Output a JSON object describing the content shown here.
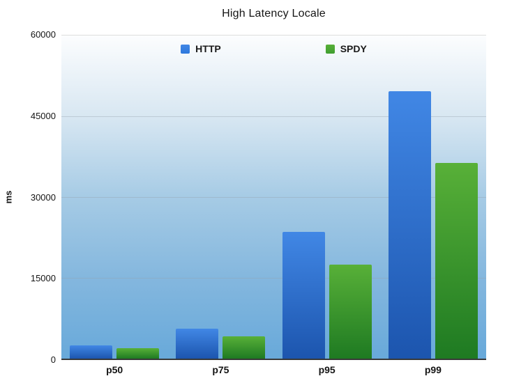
{
  "chart_data": {
    "type": "bar",
    "title": "High Latency Locale",
    "xlabel": "",
    "ylabel": "ms",
    "categories": [
      "p50",
      "p75",
      "p95",
      "p99"
    ],
    "series": [
      {
        "name": "HTTP",
        "values": [
          2400,
          5600,
          23500,
          49600
        ],
        "color_top": "#4187e5",
        "color_bottom": "#1c55ae",
        "legend_color": "#2d78dd"
      },
      {
        "name": "SPDY",
        "values": [
          1900,
          4200,
          17400,
          36300
        ],
        "color_top": "#58b038",
        "color_bottom": "#1e7a22",
        "legend_color": "#3f9e30"
      }
    ],
    "ylim": [
      0,
      60000
    ],
    "yticks": [
      0,
      15000,
      30000,
      45000,
      60000
    ],
    "grid": true,
    "legend_position": "top-center-inside",
    "plot_background_top": "#fcfdfe",
    "plot_background_bottom": "#68a9da"
  }
}
